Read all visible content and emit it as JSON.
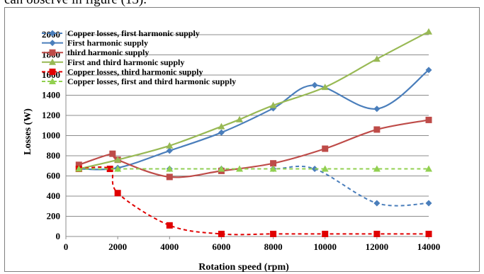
{
  "page": {
    "caption": "can observe in figure (13)."
  },
  "chart_data": {
    "type": "line",
    "title": "",
    "xlabel": "Rotation speed (rpm)",
    "ylabel": "Losses (W)",
    "xlim": [
      0,
      14000
    ],
    "ylim": [
      0,
      2000
    ],
    "xticks": [
      0,
      2000,
      4000,
      6000,
      8000,
      10000,
      12000,
      14000
    ],
    "yticks": [
      0,
      200,
      400,
      600,
      800,
      1000,
      1200,
      1400,
      1600,
      1800,
      2000
    ],
    "grid": "horizontal",
    "legend_position": "top-left",
    "series": [
      {
        "name": "Copper losses, first harmonic supply",
        "color": "#4a7ebb",
        "dashed": true,
        "marker": "diamond",
        "x": [
          500,
          2000,
          4000,
          6000,
          8000,
          9600,
          12000,
          14000
        ],
        "y": [
          670,
          670,
          670,
          670,
          670,
          670,
          330,
          330
        ]
      },
      {
        "name": "First harmonic supply",
        "color": "#4a7ebb",
        "dashed": false,
        "marker": "diamond",
        "x": [
          500,
          2000,
          4000,
          6000,
          8000,
          9600,
          12000,
          14000
        ],
        "y": [
          670,
          680,
          850,
          1030,
          1270,
          1500,
          1265,
          1650
        ]
      },
      {
        "name": "third harmonic supply",
        "color": "#be4b48",
        "dashed": false,
        "marker": "square",
        "x": [
          500,
          1800,
          2000,
          4000,
          6000,
          8000,
          10000,
          12000,
          14000
        ],
        "y": [
          710,
          820,
          760,
          590,
          650,
          725,
          870,
          1060,
          1155
        ]
      },
      {
        "name": "First and third harmonic supply",
        "color": "#98b954",
        "dashed": false,
        "marker": "triangle",
        "x": [
          500,
          2000,
          4000,
          6000,
          6700,
          8000,
          10000,
          12000,
          14000
        ],
        "y": [
          670,
          760,
          900,
          1090,
          1160,
          1300,
          1480,
          1760,
          2030
        ]
      },
      {
        "name": "Copper losses, third harmonic supply",
        "color": "#e00000",
        "dashed": true,
        "marker": "square",
        "x": [
          500,
          1700,
          2000,
          4000,
          6000,
          8000,
          10000,
          12000,
          14000
        ],
        "y": [
          670,
          670,
          430,
          110,
          25,
          25,
          25,
          25,
          25
        ]
      },
      {
        "name": "Copper losses, first and third harmonic supply",
        "color": "#92d050",
        "dashed": true,
        "marker": "triangle",
        "x": [
          500,
          2000,
          4000,
          6000,
          6700,
          8000,
          10000,
          12000,
          14000
        ],
        "y": [
          670,
          670,
          670,
          670,
          670,
          670,
          670,
          670,
          670
        ]
      }
    ]
  }
}
